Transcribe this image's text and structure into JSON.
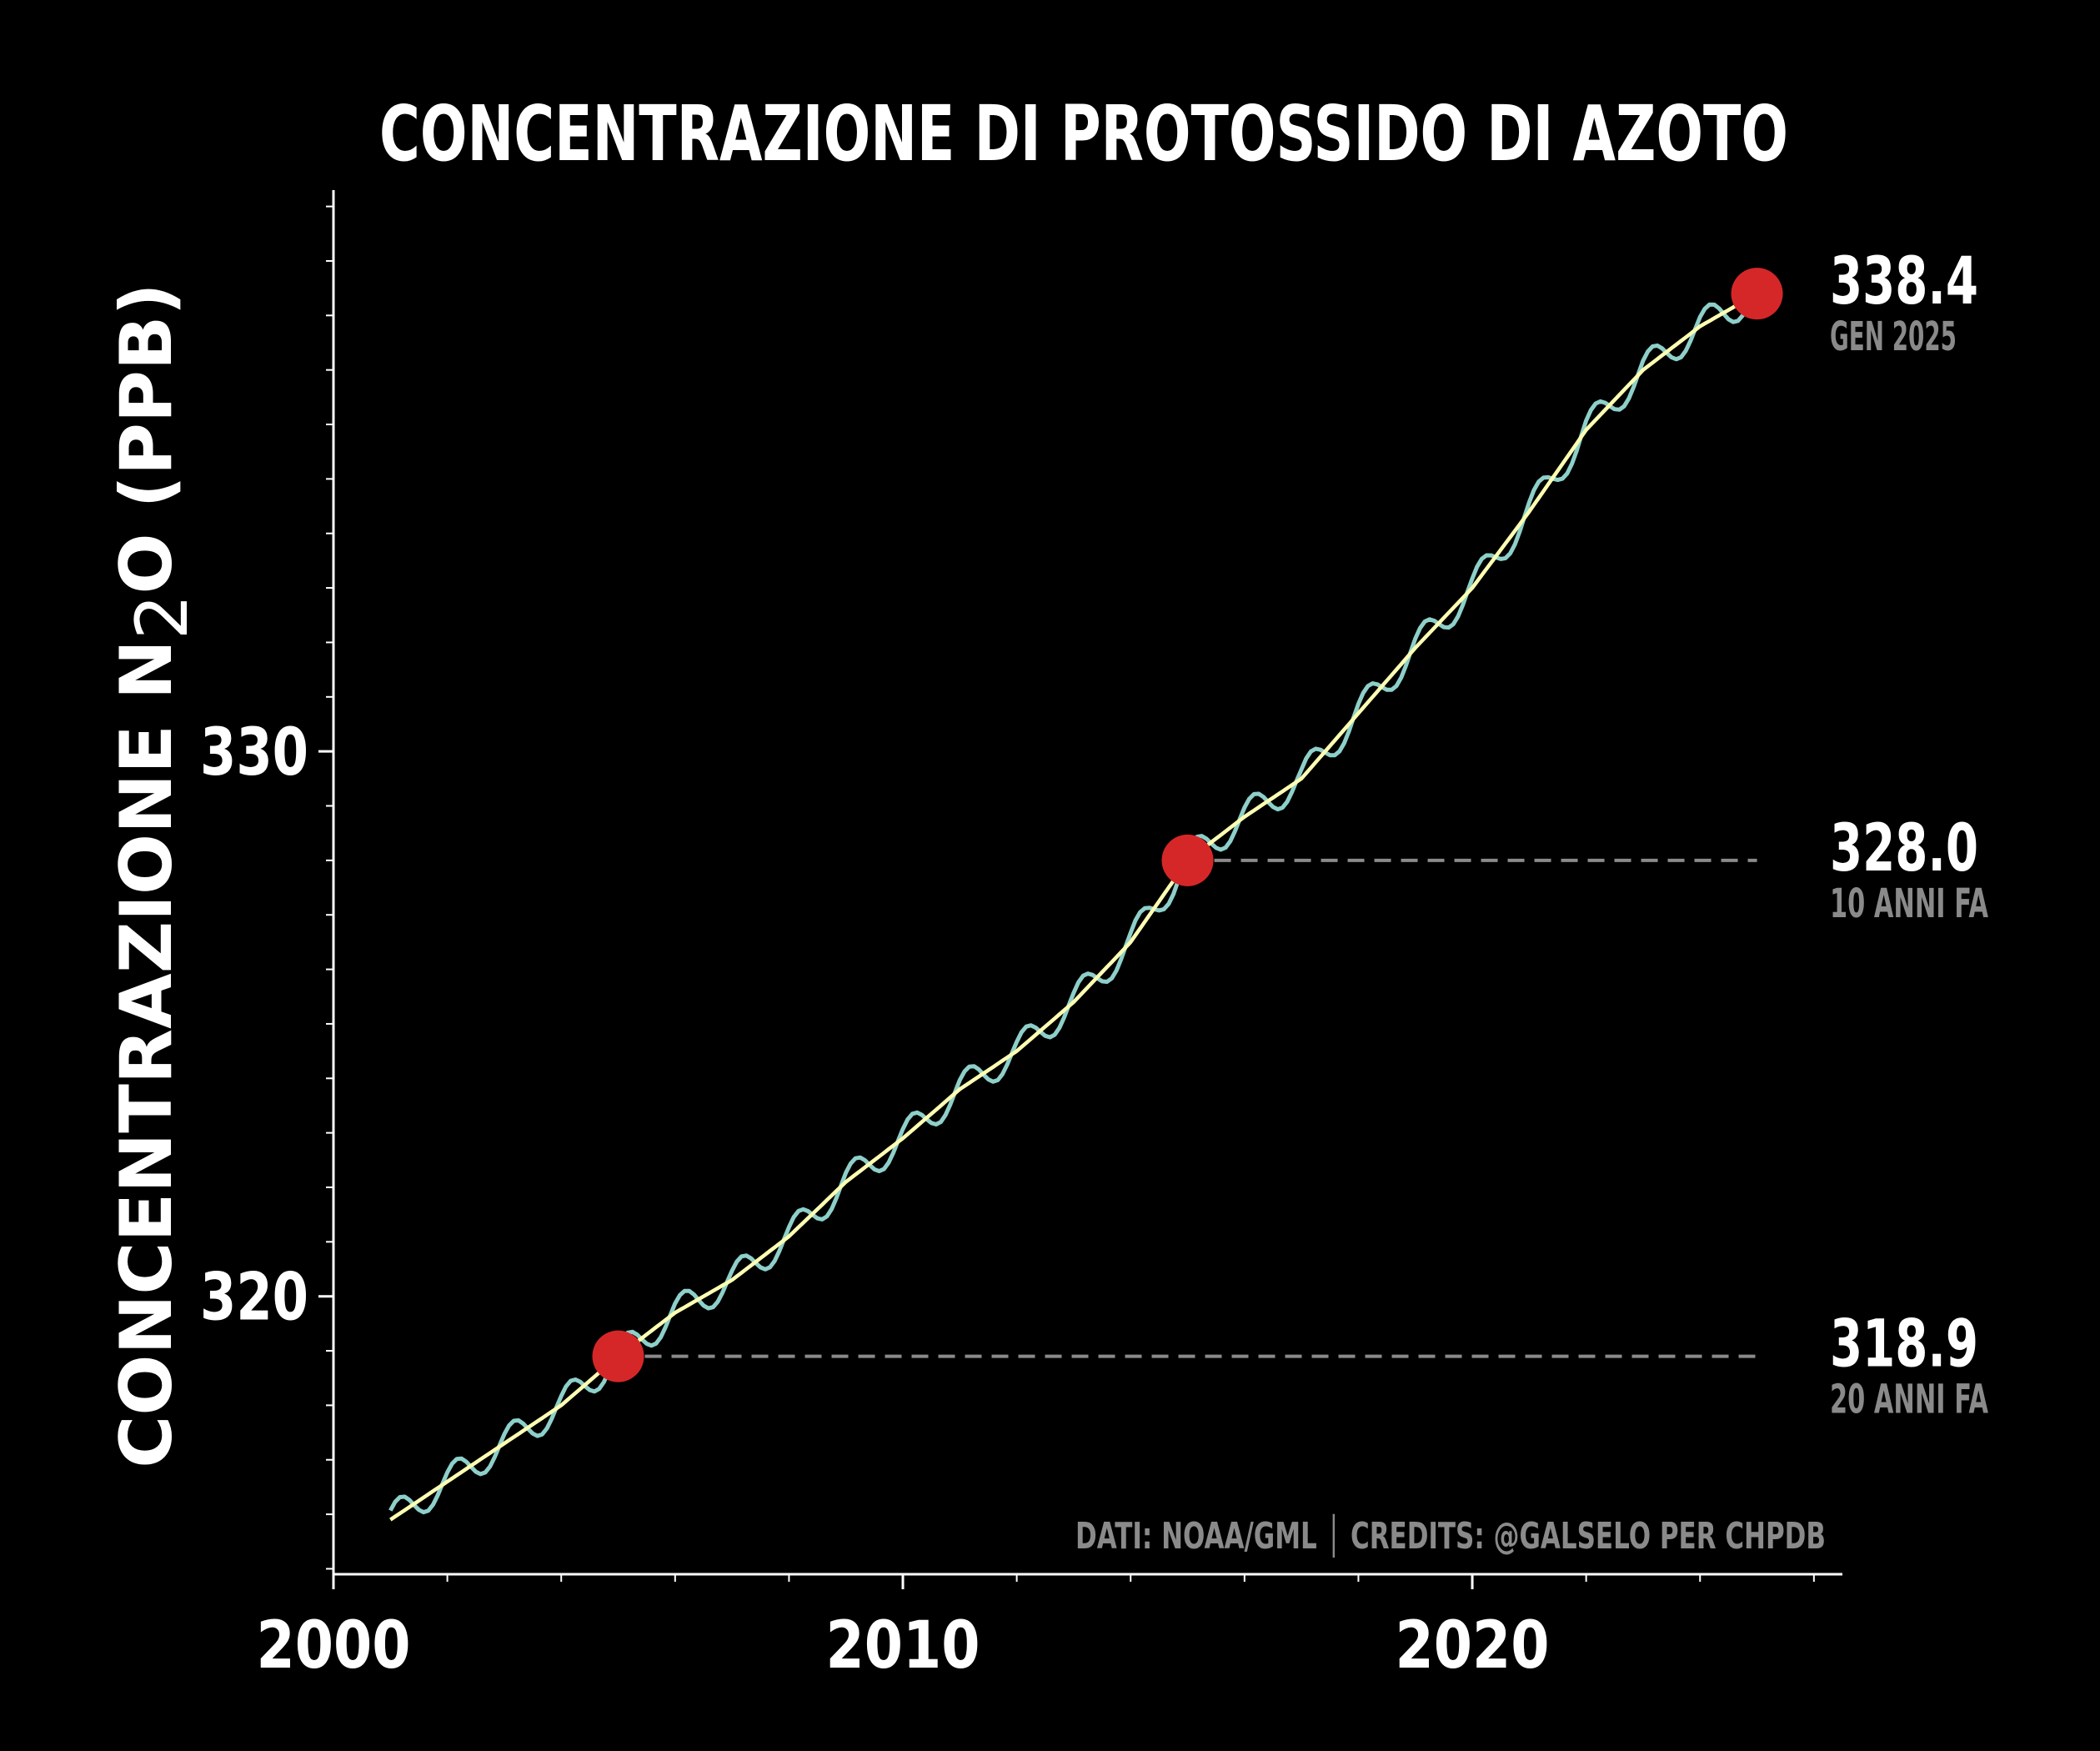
{
  "colors": {
    "background": "#000000",
    "axis": "#ffffff",
    "text": "#ffffff",
    "muted_text": "#8a8a8a",
    "monthly_line": "#8ecfc9",
    "trend_line": "#ffffb3",
    "marker": "#d62728",
    "dashed_line": "#8a8a8a"
  },
  "chart_data": {
    "type": "line",
    "title": "CONCENTRAZIONE DI PROTOSSIDO DI AZOTO",
    "ylabel_prefix": "CONCENTRAZIONE N",
    "ylabel_subscript": "2",
    "ylabel_suffix": "O (PPB)",
    "xlabel": "",
    "xlim": [
      2000,
      2026.5
    ],
    "ylim": [
      314.9,
      340.3
    ],
    "x_ticks": [
      2000,
      2010,
      2020
    ],
    "x_tick_labels": [
      "2000",
      "2010",
      "2020"
    ],
    "y_ticks": [
      320,
      330
    ],
    "y_tick_labels": [
      "320",
      "330"
    ],
    "x_minor_step": 2,
    "y_minor_step": 1,
    "grid": false,
    "series": [
      {
        "role": "monthly",
        "x": [
          2001.0,
          2002.0,
          2003.0,
          2004.0,
          2005.0,
          2006.0,
          2007.0,
          2008.0,
          2009.0,
          2010.0,
          2011.0,
          2012.0,
          2013.0,
          2014.0,
          2015.0,
          2016.0,
          2017.0,
          2018.0,
          2019.0,
          2020.0,
          2021.0,
          2022.0,
          2023.0,
          2024.0,
          2025.0
        ],
        "y": [
          315.9,
          316.6,
          317.3,
          318.0,
          318.9,
          319.7,
          320.3,
          321.1,
          322.1,
          322.9,
          323.8,
          324.5,
          325.4,
          326.5,
          328.0,
          328.8,
          329.5,
          330.7,
          331.9,
          333.0,
          334.4,
          335.9,
          337.0,
          337.8,
          338.4
        ],
        "seasonal_amplitude": 0.3
      },
      {
        "role": "trend",
        "x": [
          2001.0,
          2002.0,
          2003.0,
          2004.0,
          2005.0,
          2006.0,
          2007.0,
          2008.0,
          2009.0,
          2010.0,
          2011.0,
          2012.0,
          2013.0,
          2014.0,
          2015.0,
          2016.0,
          2017.0,
          2018.0,
          2019.0,
          2020.0,
          2021.0,
          2022.0,
          2023.0,
          2024.0,
          2025.0
        ],
        "y": [
          315.9,
          316.6,
          317.3,
          318.0,
          318.9,
          319.7,
          320.3,
          321.1,
          322.1,
          322.9,
          323.8,
          324.5,
          325.4,
          326.5,
          328.0,
          328.8,
          329.5,
          330.7,
          331.9,
          333.0,
          334.4,
          335.9,
          337.0,
          337.8,
          338.4
        ]
      }
    ],
    "highlights": [
      {
        "x": 2025.0,
        "y": 338.4,
        "value_label": "338.4",
        "sub_label": "GEN 2025",
        "dashed_to_end": false
      },
      {
        "x": 2015.0,
        "y": 328.0,
        "value_label": "328.0",
        "sub_label": "10 ANNI FA",
        "dashed_to_end": true
      },
      {
        "x": 2005.0,
        "y": 318.9,
        "value_label": "318.9",
        "sub_label": "20 ANNI FA",
        "dashed_to_end": true
      }
    ],
    "credits": "DATI: NOAA/GML │ CREDITS: @GALSELO PER CHPDB"
  }
}
